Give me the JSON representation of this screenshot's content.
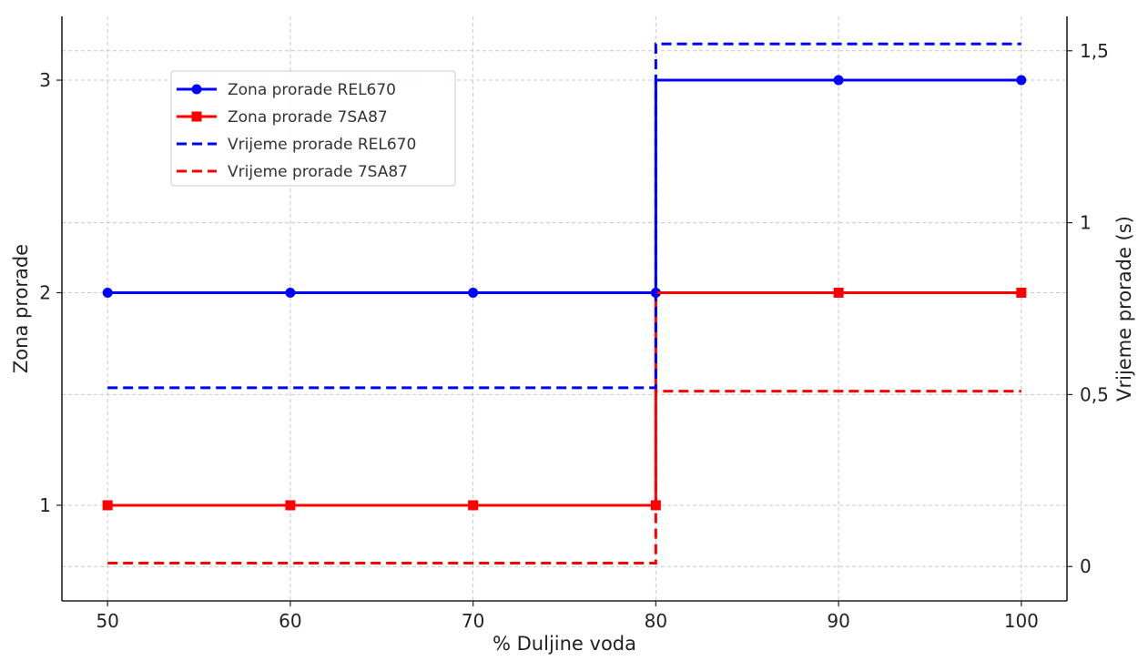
{
  "chart_data": {
    "type": "line",
    "xlabel": "% Duljine voda",
    "ylabel_left": "Zona prorade",
    "ylabel_right": "Vrijeme prorade (s)",
    "x_ticks": [
      "50",
      "60",
      "70",
      "80",
      "90",
      "100"
    ],
    "y_left_ticks": [
      "1",
      "2",
      "3"
    ],
    "y_right_ticks": [
      "0",
      "0,5",
      "1",
      "1,5"
    ],
    "x_range": [
      47.5,
      102.5
    ],
    "y_left_range": [
      0.55,
      3.3
    ],
    "y_right_range": [
      -0.1,
      1.6
    ],
    "grid": true,
    "legend_position": "upper-left",
    "series": [
      {
        "name": "Zona prorade REL670",
        "axis": "left",
        "style": "solid",
        "marker": "circle",
        "color": "#0000ff",
        "drawstyle": "steps-pre",
        "x": [
          50,
          60,
          70,
          80,
          90,
          100
        ],
        "values": [
          2,
          2,
          2,
          2,
          3,
          3
        ]
      },
      {
        "name": "Zona prorade 7SA87",
        "axis": "left",
        "style": "solid",
        "marker": "square",
        "color": "#ff0000",
        "drawstyle": "steps-pre",
        "x": [
          50,
          60,
          70,
          80,
          90,
          100
        ],
        "values": [
          1,
          1,
          1,
          1,
          2,
          2
        ]
      },
      {
        "name": "Vrijeme prorade REL670",
        "axis": "right",
        "style": "dashed",
        "marker": "none",
        "color": "#0000ff",
        "drawstyle": "steps-pre",
        "x": [
          50,
          60,
          70,
          80,
          90,
          100
        ],
        "values": [
          0.52,
          0.52,
          0.52,
          0.52,
          1.52,
          1.52
        ]
      },
      {
        "name": "Vrijeme prorade 7SA87",
        "axis": "right",
        "style": "dashed",
        "marker": "none",
        "color": "#ff0000",
        "drawstyle": "steps-pre",
        "x": [
          50,
          60,
          70,
          80,
          90,
          100
        ],
        "values": [
          0.01,
          0.01,
          0.01,
          0.01,
          0.51,
          0.51
        ]
      }
    ]
  }
}
